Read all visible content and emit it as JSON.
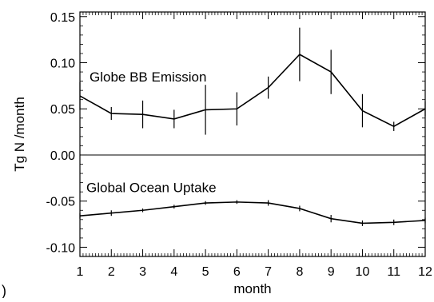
{
  "chart_data": {
    "type": "line",
    "title": "",
    "xlabel": "month",
    "ylabel": "Tg N /month",
    "xlim": [
      1,
      12
    ],
    "ylim": [
      -0.11,
      0.155
    ],
    "x_ticks": [
      1,
      2,
      3,
      4,
      5,
      6,
      7,
      8,
      9,
      10,
      11,
      12
    ],
    "y_ticks": [
      -0.1,
      -0.05,
      0.0,
      0.05,
      0.1,
      0.15
    ],
    "y_tick_labels": [
      "-0.10",
      "-0.05",
      "0.00",
      "0.05",
      "0.10",
      "0.15"
    ],
    "zero_line": 0.0,
    "grid": false,
    "legend": "none",
    "corner_label": ")",
    "series": [
      {
        "label": "Globe BB Emission",
        "x": [
          1,
          2,
          3,
          4,
          5,
          6,
          7,
          8,
          9,
          10,
          11,
          12
        ],
        "y": [
          0.064,
          0.045,
          0.044,
          0.039,
          0.049,
          0.05,
          0.073,
          0.109,
          0.09,
          0.048,
          0.031,
          0.05
        ],
        "err": [
          0.015,
          0.007,
          0.015,
          0.01,
          0.027,
          0.018,
          0.012,
          0.029,
          0.024,
          0.018,
          0.005,
          0.008
        ],
        "color": "#000000"
      },
      {
        "label": "Global Ocean Uptake",
        "x": [
          1,
          2,
          3,
          4,
          5,
          6,
          7,
          8,
          9,
          10,
          11,
          12
        ],
        "y": [
          -0.066,
          -0.063,
          -0.06,
          -0.056,
          -0.052,
          -0.051,
          -0.052,
          -0.058,
          -0.069,
          -0.074,
          -0.073,
          -0.071
        ],
        "err": [
          0.003,
          0.003,
          0.002,
          0.002,
          0.002,
          0.002,
          0.003,
          0.003,
          0.004,
          0.003,
          0.003,
          0.003
        ],
        "color": "#000000"
      }
    ]
  }
}
